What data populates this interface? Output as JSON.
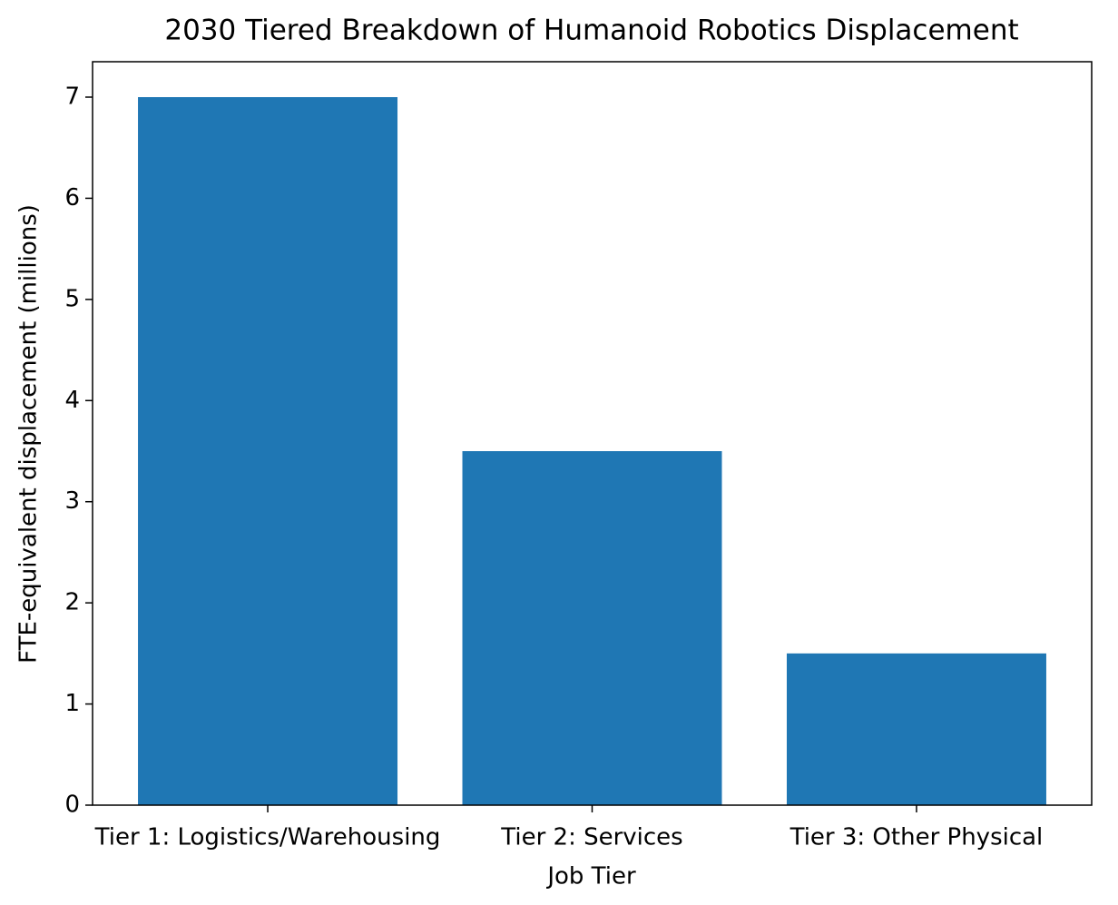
{
  "chart_data": {
    "type": "bar",
    "title": "2030 Tiered Breakdown of Humanoid Robotics Displacement",
    "x_label": "Job Tier",
    "y_label": "FTE-equivalent displacement (millions)",
    "categories": [
      "Tier 1: Logistics/Warehousing",
      "Tier 2: Services",
      "Tier 3: Other Physical"
    ],
    "values": [
      7,
      3.5,
      1.5
    ],
    "color": "#1f77b4",
    "ylim": [
      0,
      7.35
    ],
    "yticks": [
      0,
      1,
      2,
      3,
      4,
      5,
      6,
      7
    ],
    "grid": false
  }
}
